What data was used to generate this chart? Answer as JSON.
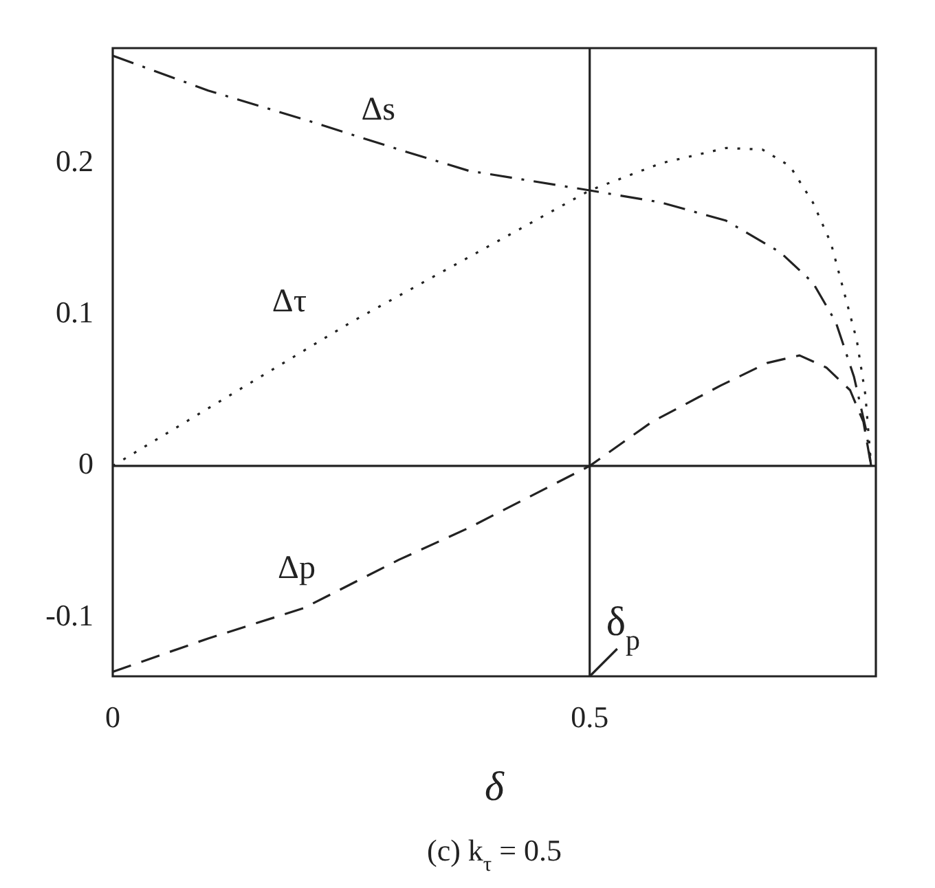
{
  "chart_data": {
    "type": "line",
    "title": "(c) k$_{τ}$ = 0.5",
    "xlabel": "δ",
    "xlim": [
      0,
      0.8
    ],
    "ylim": [
      -0.139,
      0.276
    ],
    "xticks": [
      0,
      0.5
    ],
    "yticks": [
      -0.1,
      0,
      0.1,
      0.2
    ],
    "grid": false,
    "legend": false,
    "marker": "none",
    "series": [
      {
        "name": "Δs",
        "color": "#222222",
        "line_style": "dashdot",
        "x": [
          0,
          0.1,
          0.2,
          0.3,
          0.373,
          0.5,
          0.575,
          0.643,
          0.7,
          0.734,
          0.758,
          0.777,
          0.79,
          0.795
        ],
        "values": [
          0.271,
          0.248,
          0.229,
          0.209,
          0.195,
          0.182,
          0.174,
          0.162,
          0.141,
          0.121,
          0.095,
          0.059,
          0.023,
          0
        ]
      },
      {
        "name": "Δτ",
        "color": "#222222",
        "line_style": "dotted",
        "x": [
          0,
          0.25,
          0.5,
          0.575,
          0.643,
          0.681,
          0.71,
          0.734,
          0.753,
          0.767,
          0.78,
          0.789,
          0.795
        ],
        "values": [
          0,
          0.095,
          0.182,
          0.2,
          0.21,
          0.209,
          0.198,
          0.174,
          0.147,
          0.114,
          0.083,
          0.047,
          0
        ]
      },
      {
        "name": "Δp",
        "color": "#222222",
        "line_style": "dashed",
        "x": [
          0,
          0.1,
          0.2,
          0.3,
          0.373,
          0.5,
          0.565,
          0.637,
          0.686,
          0.72,
          0.748,
          0.773,
          0.787,
          0.795
        ],
        "values": [
          -0.136,
          -0.114,
          -0.094,
          -0.062,
          -0.041,
          0,
          0.029,
          0.053,
          0.068,
          0.073,
          0.065,
          0.05,
          0.029,
          0
        ]
      }
    ],
    "ref_lines": [
      {
        "axis": "x",
        "value": 0.5,
        "label": "δ$_{p}$"
      },
      {
        "axis": "y",
        "value": 0
      }
    ]
  }
}
